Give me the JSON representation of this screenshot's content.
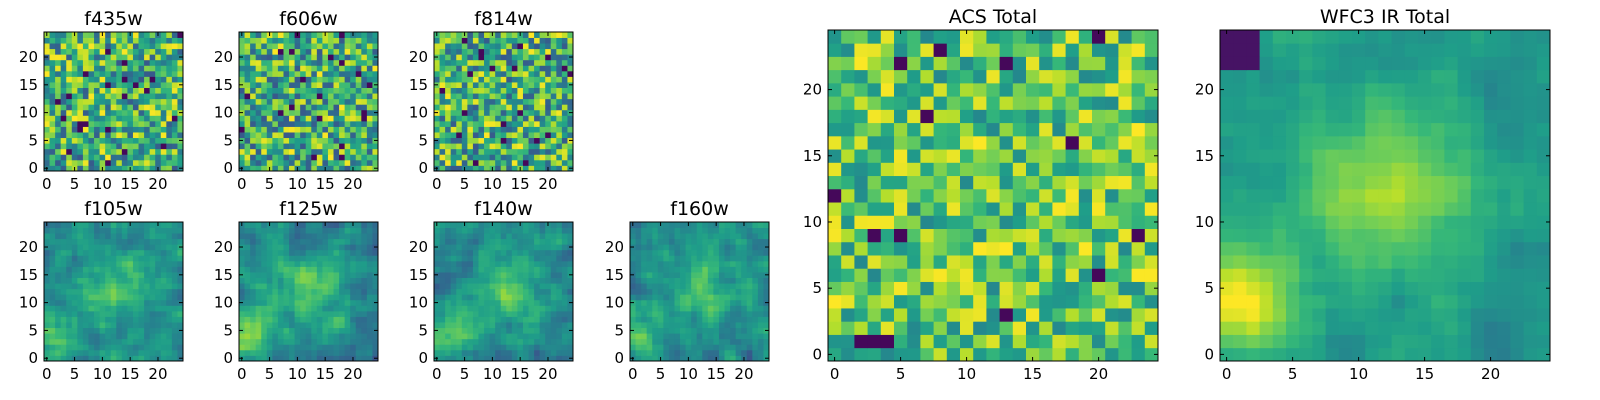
{
  "chart_data": [
    {
      "type": "heatmap",
      "title": "f435w",
      "xlim": [
        0,
        24
      ],
      "ylim": [
        0,
        24
      ],
      "x_ticks": [
        0,
        5,
        10,
        15,
        20
      ],
      "y_ticks": [
        0,
        5,
        10,
        15,
        20
      ],
      "colormap": "viridis",
      "pattern": "noise",
      "seed": 11
    },
    {
      "type": "heatmap",
      "title": "f606w",
      "xlim": [
        0,
        24
      ],
      "ylim": [
        0,
        24
      ],
      "x_ticks": [
        0,
        5,
        10,
        15,
        20
      ],
      "y_ticks": [
        0,
        5,
        10,
        15,
        20
      ],
      "colormap": "viridis",
      "pattern": "noise",
      "seed": 23
    },
    {
      "type": "heatmap",
      "title": "f814w",
      "xlim": [
        0,
        24
      ],
      "ylim": [
        0,
        24
      ],
      "x_ticks": [
        0,
        5,
        10,
        15,
        20
      ],
      "y_ticks": [
        0,
        5,
        10,
        15,
        20
      ],
      "colormap": "viridis",
      "pattern": "noise",
      "seed": 37
    },
    {
      "type": "heatmap",
      "title": "f105w",
      "xlim": [
        0,
        24
      ],
      "ylim": [
        0,
        24
      ],
      "x_ticks": [
        0,
        5,
        10,
        15,
        20
      ],
      "y_ticks": [
        0,
        5,
        10,
        15,
        20
      ],
      "colormap": "viridis",
      "pattern": "smooth",
      "seed": 41
    },
    {
      "type": "heatmap",
      "title": "f125w",
      "xlim": [
        0,
        24
      ],
      "ylim": [
        0,
        24
      ],
      "x_ticks": [
        0,
        5,
        10,
        15,
        20
      ],
      "y_ticks": [
        0,
        5,
        10,
        15,
        20
      ],
      "colormap": "viridis",
      "pattern": "smooth",
      "seed": 53
    },
    {
      "type": "heatmap",
      "title": "f140w",
      "xlim": [
        0,
        24
      ],
      "ylim": [
        0,
        24
      ],
      "x_ticks": [
        0,
        5,
        10,
        15,
        20
      ],
      "y_ticks": [
        0,
        5,
        10,
        15,
        20
      ],
      "colormap": "viridis",
      "pattern": "smooth",
      "seed": 67
    },
    {
      "type": "heatmap",
      "title": "f160w",
      "xlim": [
        0,
        24
      ],
      "ylim": [
        0,
        24
      ],
      "x_ticks": [
        0,
        5,
        10,
        15,
        20
      ],
      "y_ticks": [
        0,
        5,
        10,
        15,
        20
      ],
      "colormap": "viridis",
      "pattern": "smooth",
      "seed": 79
    },
    {
      "type": "heatmap",
      "title": "ACS Total",
      "xlim": [
        0,
        24
      ],
      "ylim": [
        0,
        24
      ],
      "x_ticks": [
        0,
        5,
        10,
        15,
        20
      ],
      "y_ticks": [
        0,
        5,
        10,
        15,
        20
      ],
      "colormap": "viridis",
      "pattern": "noise-bright",
      "seed": 97
    },
    {
      "type": "heatmap",
      "title": "WFC3 IR Total",
      "xlim": [
        0,
        24
      ],
      "ylim": [
        0,
        24
      ],
      "x_ticks": [
        0,
        5,
        10,
        15,
        20
      ],
      "y_ticks": [
        0,
        5,
        10,
        15,
        20
      ],
      "colormap": "viridis",
      "pattern": "smooth-total",
      "seed": 131
    }
  ]
}
